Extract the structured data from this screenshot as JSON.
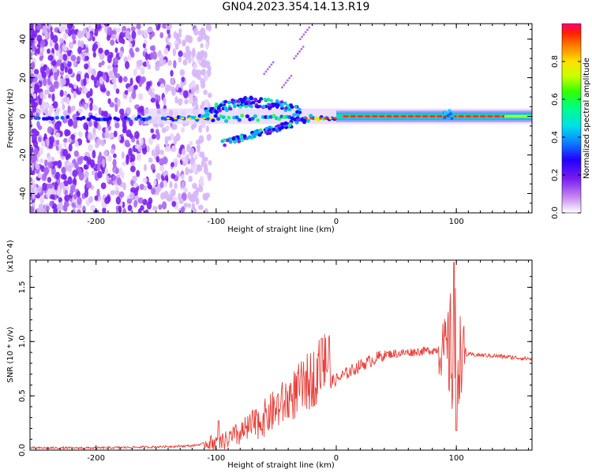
{
  "title": "GN04.2023.354.14.13.R19",
  "chart_data": [
    {
      "type": "heatmap",
      "xlabel": "Height of straight line (km)",
      "ylabel": "Frequency (Hz)",
      "xlim": [
        -255,
        163
      ],
      "ylim": [
        -50,
        48
      ],
      "x_ticks": [
        -200,
        -100,
        0,
        100
      ],
      "y_ticks": [
        -40,
        -20,
        0,
        20,
        40
      ],
      "colorbar": {
        "label": "Normalized spectral amplitude",
        "range": [
          0,
          1
        ],
        "ticks": [
          "0.0",
          "0.2",
          "0.4",
          "0.6",
          "0.8"
        ]
      },
      "features": [
        {
          "name": "broadband noise",
          "x_range": [
            -255,
            -120
          ],
          "y_range": [
            -50,
            48
          ]
        },
        {
          "name": "main signal band",
          "x_range": [
            -160,
            163
          ],
          "center_freq": 0
        },
        {
          "name": "upper branch",
          "x_range": [
            -110,
            -30
          ],
          "y_range": [
            0,
            12
          ]
        },
        {
          "name": "lower branch",
          "x_range": [
            -95,
            -25
          ],
          "y_range": [
            -15,
            -2
          ]
        }
      ]
    },
    {
      "type": "line",
      "xlabel": "Height of straight line (km)",
      "ylabel": "SNR (10 * v/v)",
      "y_multiplier": "(x10^4)",
      "xlim": [
        -255,
        163
      ],
      "ylim": [
        0,
        1.75
      ],
      "x_ticks": [
        -200,
        -100,
        0,
        100
      ],
      "y_ticks": [
        "0.0",
        "0.5",
        "1.0",
        "1.5"
      ],
      "color": "#e8403a",
      "envelope": {
        "x": [
          -255,
          -200,
          -150,
          -120,
          -100,
          -80,
          -60,
          -40,
          -20,
          -10,
          0,
          20,
          40,
          60,
          80,
          90,
          95,
          100,
          105,
          110,
          130,
          163
        ],
        "y": [
          0.02,
          0.02,
          0.03,
          0.04,
          0.08,
          0.13,
          0.22,
          0.34,
          0.48,
          0.6,
          0.65,
          0.78,
          0.88,
          0.9,
          0.92,
          0.93,
          0.9,
          0.88,
          0.88,
          0.88,
          0.87,
          0.84
        ]
      },
      "peaks": [
        {
          "x": -98,
          "y": 0.27
        },
        {
          "x": -12,
          "y": 1.03
        },
        {
          "x": 98,
          "y": 1.73
        },
        {
          "x": 100,
          "y": 0.18
        }
      ]
    }
  ]
}
